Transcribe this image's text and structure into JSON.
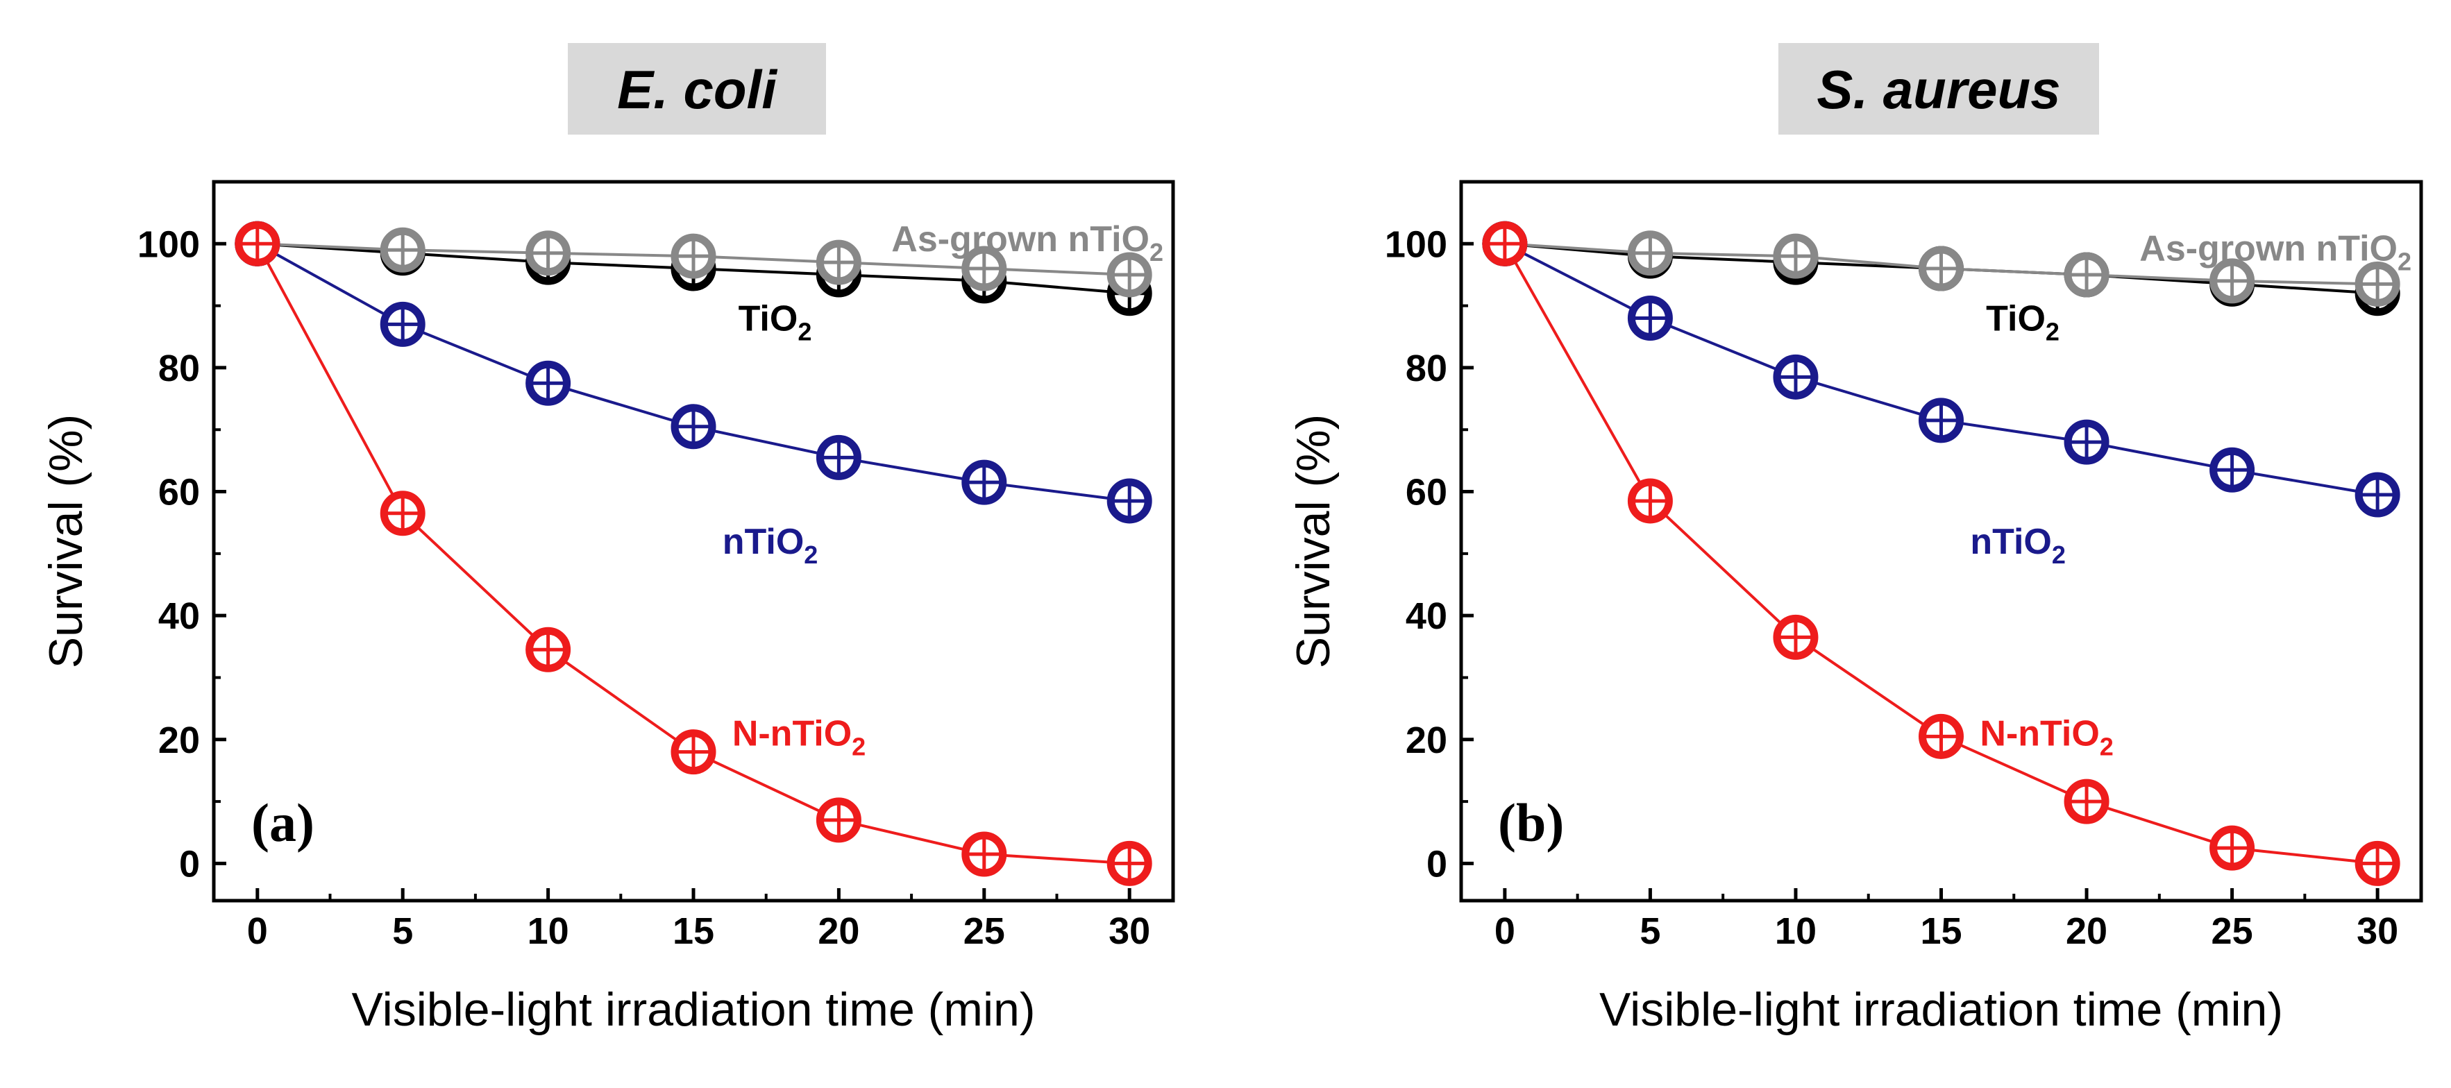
{
  "chart_data": [
    {
      "type": "line",
      "panel": "(a)",
      "title": "E. coli",
      "xlabel": "Visible-light irradiation time (min)",
      "ylabel": "Survival (%)",
      "x": [
        0,
        5,
        10,
        15,
        20,
        25,
        30
      ],
      "xlim": [
        -1.5,
        31.5
      ],
      "ylim": [
        -6,
        110
      ],
      "xticks": [
        0,
        5,
        10,
        15,
        20,
        25,
        30
      ],
      "yticks": [
        0,
        20,
        40,
        60,
        80,
        100
      ],
      "series": [
        {
          "name": "As-grown nTiO",
          "subscript": "2",
          "color": "#888888",
          "values": [
            100,
            99,
            98.5,
            98,
            97,
            96,
            95
          ]
        },
        {
          "name": "TiO",
          "subscript": "2",
          "color": "#000000",
          "values": [
            100,
            98.5,
            97,
            96,
            95,
            94,
            92
          ]
        },
        {
          "name": "nTiO",
          "subscript": "2",
          "color": "#1a1a8c",
          "values": [
            100,
            87,
            77.5,
            70.5,
            65.5,
            61.5,
            58.5
          ]
        },
        {
          "name": "N-nTiO",
          "subscript": "2",
          "color": "#ee1c1c",
          "values": [
            100,
            56.5,
            34.5,
            18,
            7,
            1.5,
            0
          ]
        }
      ]
    },
    {
      "type": "line",
      "panel": "(b)",
      "title": "S. aureus",
      "xlabel": "Visible-light irradiation time (min)",
      "ylabel": "Survival (%)",
      "x": [
        0,
        5,
        10,
        15,
        20,
        25,
        30
      ],
      "xlim": [
        -1.5,
        31.5
      ],
      "ylim": [
        -6,
        110
      ],
      "xticks": [
        0,
        5,
        10,
        15,
        20,
        25,
        30
      ],
      "yticks": [
        0,
        20,
        40,
        60,
        80,
        100
      ],
      "series": [
        {
          "name": "As-grown nTiO",
          "subscript": "2",
          "color": "#888888",
          "values": [
            100,
            98.5,
            98,
            96,
            95,
            94,
            93.5
          ]
        },
        {
          "name": "TiO",
          "subscript": "2",
          "color": "#000000",
          "values": [
            100,
            98,
            97,
            96,
            95,
            93.5,
            92
          ]
        },
        {
          "name": "nTiO",
          "subscript": "2",
          "color": "#1a1a8c",
          "values": [
            100,
            88,
            78.5,
            71.5,
            68,
            63.5,
            59.5
          ]
        },
        {
          "name": "N-nTiO",
          "subscript": "2",
          "color": "#ee1c1c",
          "values": [
            100,
            58.5,
            36.5,
            20.5,
            10,
            2.5,
            0
          ]
        }
      ]
    }
  ]
}
